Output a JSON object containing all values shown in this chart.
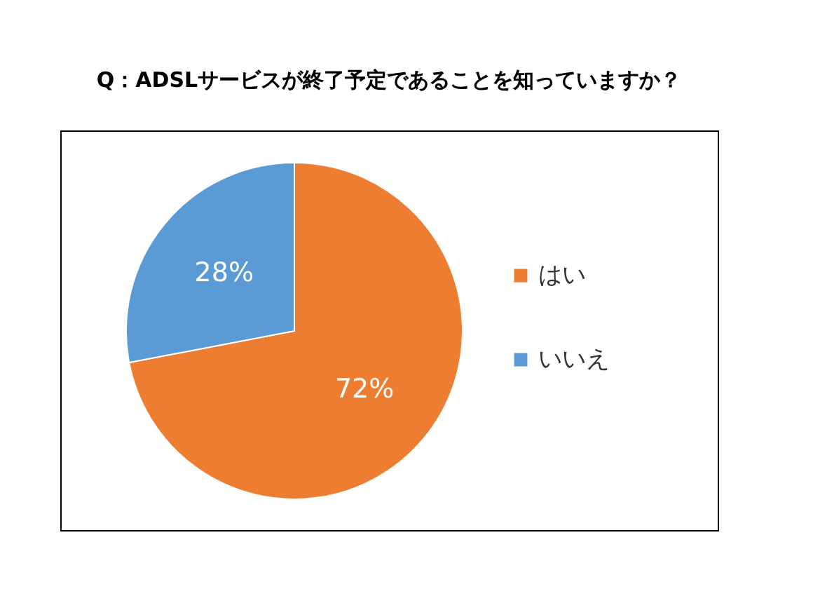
{
  "chart_data": {
    "type": "pie",
    "title": "Q：ADSLサービスが終了予定であることを知っていますか？",
    "categories": [
      "はい",
      "いいえ"
    ],
    "values": [
      72,
      28
    ],
    "colors": [
      "#ed7d31",
      "#5b9bd5"
    ],
    "value_labels": [
      "72%",
      "28%"
    ],
    "legend": "right"
  }
}
